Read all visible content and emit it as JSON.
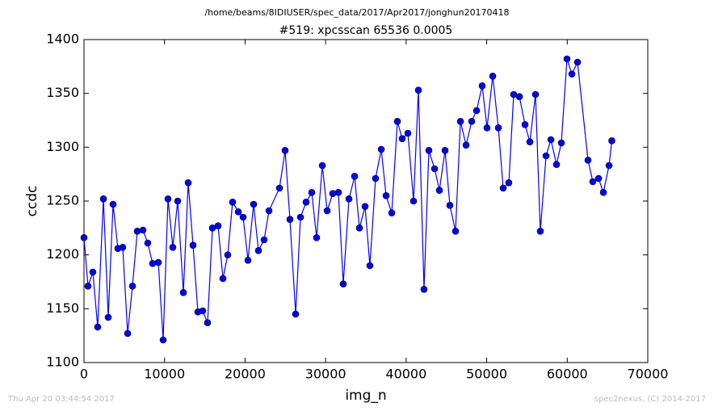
{
  "chart_data": {
    "type": "line",
    "suptitle": "/home/beams/8IDIUSER/spec_data/2017/Apr2017/jonghun20170418",
    "title": "#519: xpcsscan 65536 0.0005",
    "xlabel": "img_n",
    "ylabel": "ccdc",
    "footer_left": "Thu Apr 20 03:44:54 2017",
    "footer_right": "spec2nexus, (C) 2014-2017",
    "x": [
      0,
      500,
      1100,
      1700,
      2410,
      3010,
      3610,
      4210,
      4810,
      5420,
      6020,
      6620,
      7320,
      7920,
      8520,
      9230,
      9830,
      10430,
      11030,
      11630,
      12340,
      12940,
      13540,
      14140,
      14740,
      15340,
      15950,
      16650,
      17250,
      17850,
      18450,
      19160,
      19760,
      20360,
      21060,
      21660,
      22360,
      22970,
      24270,
      24970,
      25570,
      26280,
      26880,
      27580,
      28280,
      28880,
      29590,
      30190,
      30890,
      31590,
      32190,
      32900,
      33600,
      34200,
      34900,
      35500,
      36200,
      36910,
      37510,
      38210,
      38910,
      39510,
      40220,
      40920,
      41520,
      42220,
      42820,
      43530,
      44130,
      44830,
      45430,
      46130,
      46740,
      47440,
      48140,
      48740,
      49440,
      50040,
      50750,
      51450,
      52050,
      52750,
      53350,
      54060,
      54760,
      55360,
      56060,
      56660,
      57370,
      57970,
      58670,
      59270,
      59970,
      60580,
      61280,
      62580,
      63180,
      63890,
      64490,
      65190,
      65536
    ],
    "series": [
      {
        "name": "ccdc",
        "color": "#0000ff",
        "values": [
          1216,
          1171,
          1184,
          1133,
          1252,
          1142,
          1247,
          1206,
          1207,
          1127,
          1171,
          1222,
          1223,
          1211,
          1192,
          1193,
          1121,
          1252,
          1207,
          1250,
          1165,
          1267,
          1209,
          1147,
          1148,
          1137,
          1225,
          1227,
          1178,
          1200,
          1249,
          1240,
          1235,
          1195,
          1247,
          1204,
          1214,
          1241,
          1262,
          1297,
          1233,
          1145,
          1235,
          1249,
          1258,
          1216,
          1283,
          1241,
          1257,
          1258,
          1173,
          1252,
          1273,
          1225,
          1245,
          1190,
          1271,
          1298,
          1255,
          1239,
          1324,
          1308,
          1313,
          1250,
          1353,
          1168,
          1297,
          1280,
          1260,
          1297,
          1246,
          1222,
          1324,
          1302,
          1324,
          1334,
          1357,
          1318,
          1366,
          1318,
          1262,
          1267,
          1349,
          1347,
          1321,
          1305,
          1349,
          1222,
          1292,
          1307,
          1284,
          1304,
          1382,
          1368,
          1379,
          1288,
          1268,
          1271,
          1258,
          1283,
          1306
        ]
      }
    ],
    "xlim": [
      0,
      70000
    ],
    "xticks": [
      0,
      10000,
      20000,
      30000,
      40000,
      50000,
      60000,
      70000
    ],
    "ylim": [
      1100,
      1400
    ],
    "yticks": [
      1100,
      1150,
      1200,
      1250,
      1300,
      1350,
      1400
    ]
  }
}
